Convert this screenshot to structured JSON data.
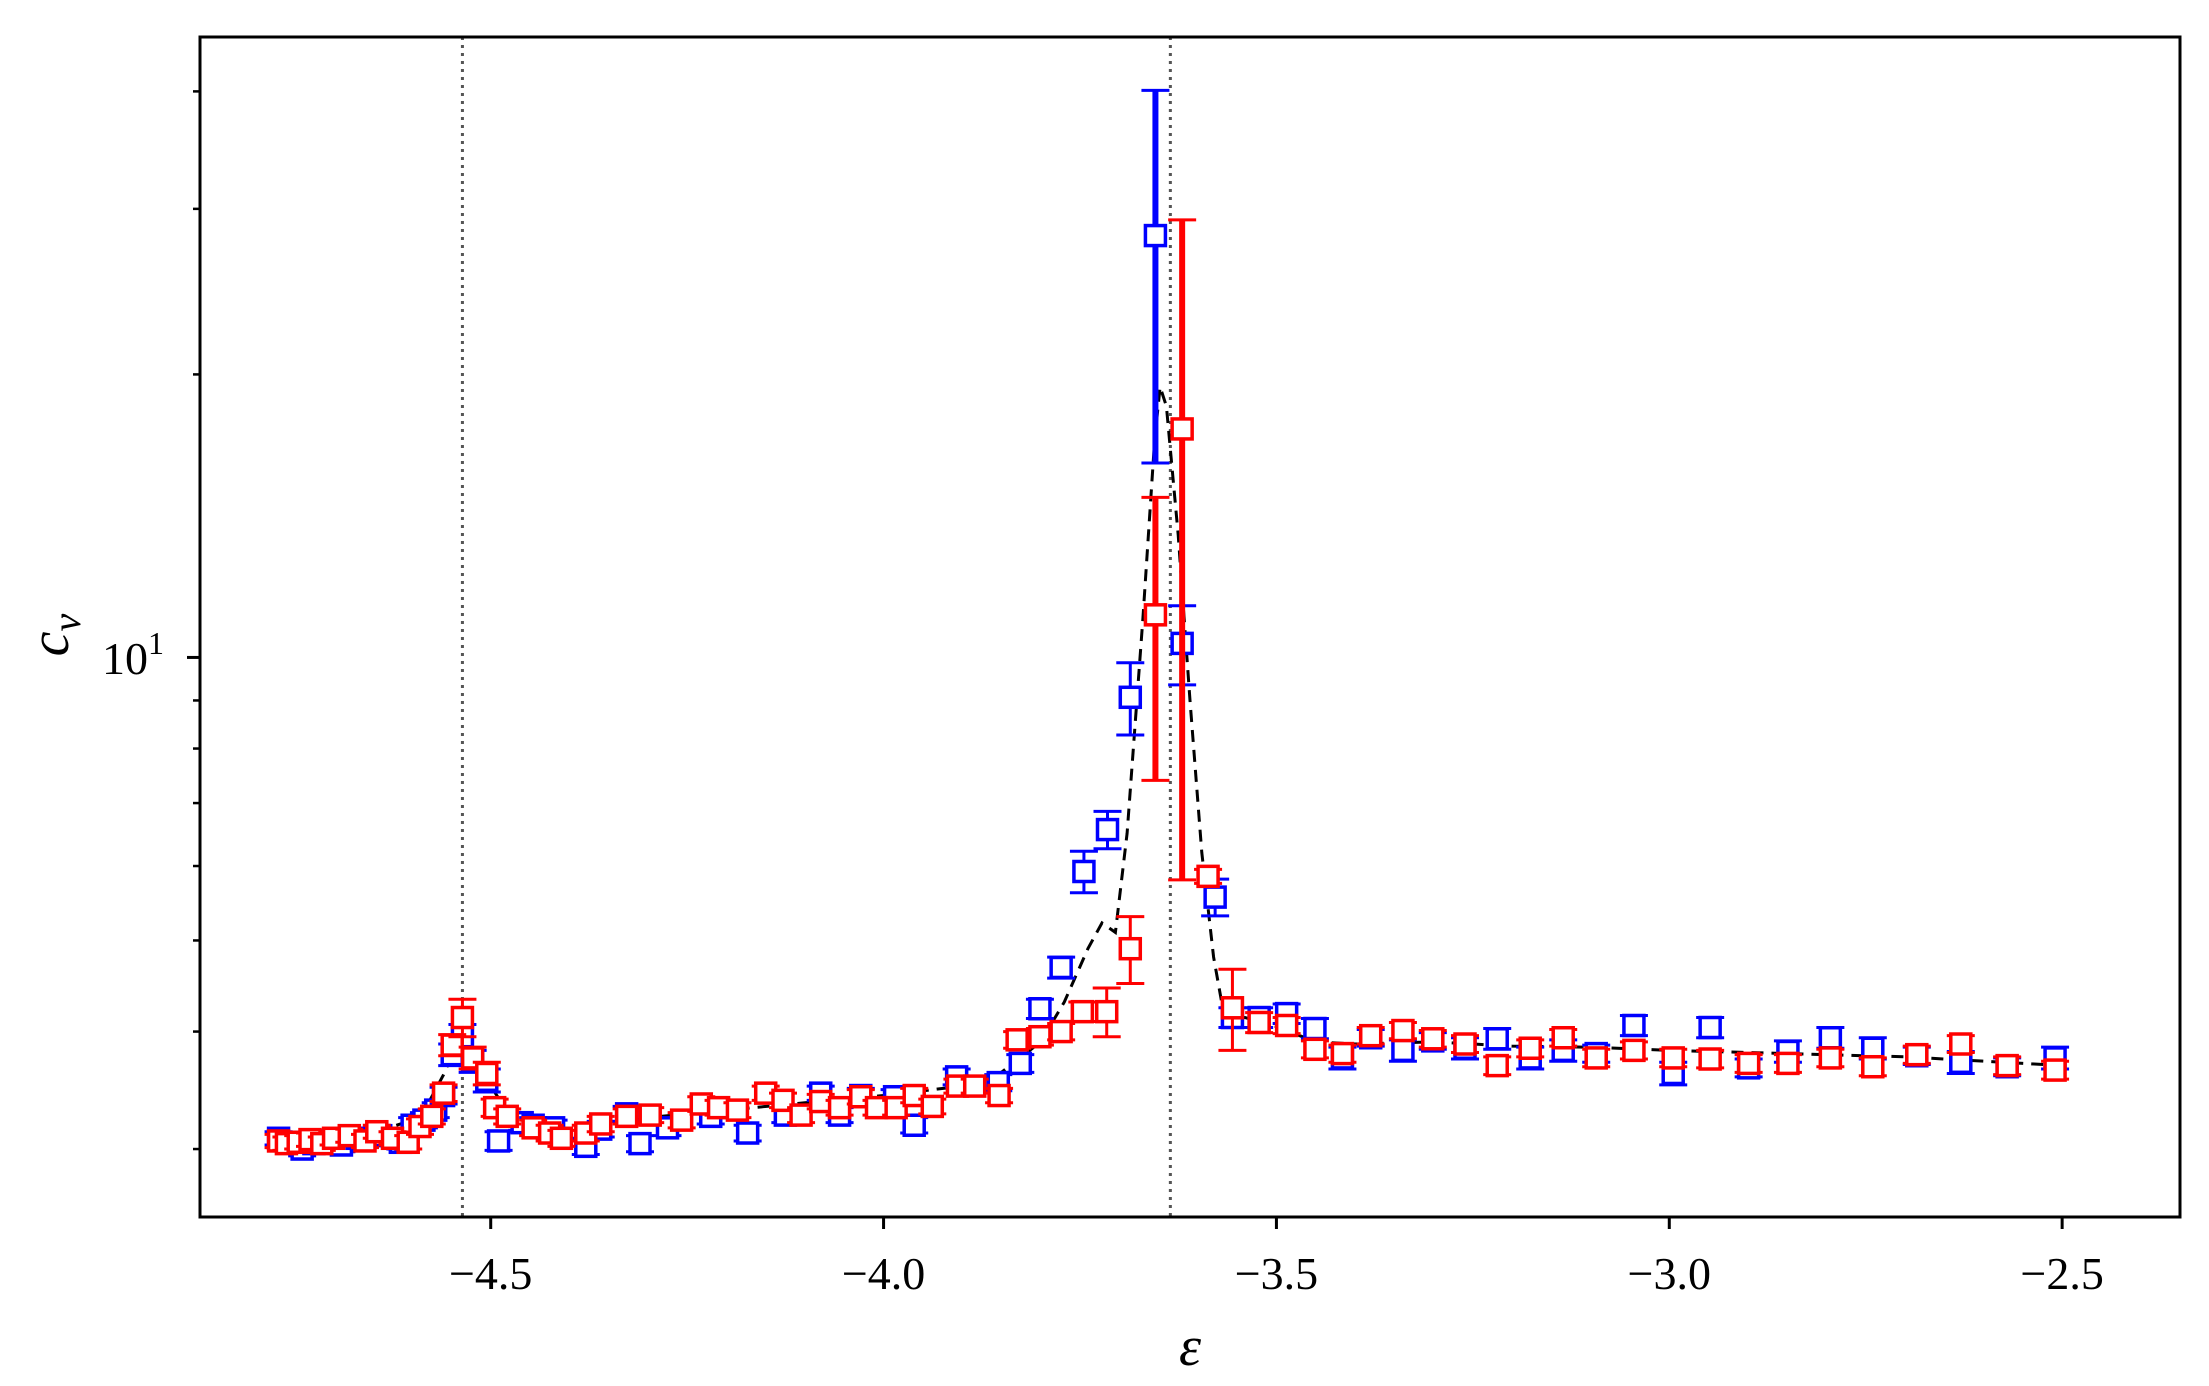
{
  "chart_data": {
    "type": "scatter",
    "title": "",
    "xlabel": "ε",
    "ylabel": "c_v",
    "ylabel_display": {
      "base": "c",
      "subscript": "v"
    },
    "xscale": "linear",
    "yscale": "log",
    "xlim": [
      -4.87,
      -2.35
    ],
    "ylim": [
      2.54,
      45.7
    ],
    "grid": false,
    "legend": null,
    "x_ticks": [
      -4.5,
      -4.0,
      -3.5,
      -3.0,
      -2.5
    ],
    "x_tick_labels": [
      "−4.5",
      "−4.0",
      "−3.5",
      "−3.0",
      "−2.5"
    ],
    "y_major_ticks": [
      10
    ],
    "y_major_tick_labels": [
      {
        "base": "10",
        "exp": "1"
      }
    ],
    "y_minor_ticks": [
      3,
      4,
      5,
      6,
      7,
      8,
      9,
      20,
      30,
      40
    ],
    "vlines": [
      {
        "x": -4.536,
        "style": "dotted",
        "color": "#555555"
      },
      {
        "x": -3.635,
        "style": "dotted",
        "color": "#555555"
      }
    ],
    "series": [
      {
        "name": "blue",
        "color": "#0000ff",
        "marker": "open-square",
        "points": [
          {
            "x": -4.77,
            "y": 3.08,
            "err": 0.05
          },
          {
            "x": -4.755,
            "y": 3.05,
            "err": 0.05
          },
          {
            "x": -4.74,
            "y": 3.0,
            "err": 0.05
          },
          {
            "x": -4.725,
            "y": 3.04,
            "err": 0.05
          },
          {
            "x": -4.71,
            "y": 3.06,
            "err": 0.05
          },
          {
            "x": -4.69,
            "y": 3.03,
            "err": 0.05
          },
          {
            "x": -4.67,
            "y": 3.08,
            "err": 0.05
          },
          {
            "x": -4.64,
            "y": 3.1,
            "err": 0.05
          },
          {
            "x": -4.615,
            "y": 3.05,
            "err": 0.05
          },
          {
            "x": -4.6,
            "y": 3.18,
            "err": 0.06
          },
          {
            "x": -4.585,
            "y": 3.22,
            "err": 0.06
          },
          {
            "x": -4.57,
            "y": 3.3,
            "err": 0.06
          },
          {
            "x": -4.56,
            "y": 3.42,
            "err": 0.07
          },
          {
            "x": -4.549,
            "y": 3.78,
            "err": 0.1
          },
          {
            "x": -4.536,
            "y": 3.95,
            "err": 0.12
          },
          {
            "x": -4.523,
            "y": 3.72,
            "err": 0.1
          },
          {
            "x": -4.505,
            "y": 3.55,
            "err": 0.1
          },
          {
            "x": -4.49,
            "y": 3.06,
            "err": 0.07
          },
          {
            "x": -4.46,
            "y": 3.2,
            "err": 0.06
          },
          {
            "x": -4.446,
            "y": 3.18,
            "err": 0.06
          },
          {
            "x": -4.42,
            "y": 3.16,
            "err": 0.06
          },
          {
            "x": -4.379,
            "y": 3.02,
            "err": 0.06
          },
          {
            "x": -4.36,
            "y": 3.15,
            "err": 0.06
          },
          {
            "x": -4.327,
            "y": 3.27,
            "err": 0.06
          },
          {
            "x": -4.31,
            "y": 3.04,
            "err": 0.06
          },
          {
            "x": -4.275,
            "y": 3.16,
            "err": 0.06
          },
          {
            "x": -4.22,
            "y": 3.25,
            "err": 0.06
          },
          {
            "x": -4.173,
            "y": 3.12,
            "err": 0.06
          },
          {
            "x": -4.125,
            "y": 3.26,
            "err": 0.06
          },
          {
            "x": -4.08,
            "y": 3.44,
            "err": 0.06
          },
          {
            "x": -4.056,
            "y": 3.26,
            "err": 0.06
          },
          {
            "x": -4.029,
            "y": 3.42,
            "err": 0.06
          },
          {
            "x": -3.986,
            "y": 3.41,
            "err": 0.06
          },
          {
            "x": -3.961,
            "y": 3.18,
            "err": 0.06
          },
          {
            "x": -3.907,
            "y": 3.58,
            "err": 0.07
          },
          {
            "x": -3.854,
            "y": 3.53,
            "err": 0.07
          },
          {
            "x": -3.826,
            "y": 3.7,
            "err": 0.08
          },
          {
            "x": -3.801,
            "y": 4.23,
            "err": 0.1
          },
          {
            "x": -3.774,
            "y": 4.68,
            "err": 0.12
          },
          {
            "x": -3.745,
            "y": 5.92,
            "err": 0.3
          },
          {
            "x": -3.715,
            "y": 6.56,
            "err": 0.3
          },
          {
            "x": -3.686,
            "y": 9.07,
            "err": 0.8
          },
          {
            "x": -3.654,
            "y": 28.1,
            "err": 12.0
          },
          {
            "x": -3.62,
            "y": 10.35,
            "err": 1.0
          },
          {
            "x": -3.578,
            "y": 5.56,
            "err": 0.25
          },
          {
            "x": -3.556,
            "y": 4.14,
            "err": 0.1
          },
          {
            "x": -3.522,
            "y": 4.14,
            "err": 0.1
          },
          {
            "x": -3.487,
            "y": 4.18,
            "err": 0.1
          },
          {
            "x": -3.451,
            "y": 4.03,
            "err": 0.1
          },
          {
            "x": -3.416,
            "y": 3.75,
            "err": 0.1
          },
          {
            "x": -3.38,
            "y": 3.94,
            "err": 0.08
          },
          {
            "x": -3.339,
            "y": 3.82,
            "err": 0.1
          },
          {
            "x": -3.301,
            "y": 3.91,
            "err": 0.08
          },
          {
            "x": -3.26,
            "y": 3.84,
            "err": 0.1
          },
          {
            "x": -3.219,
            "y": 3.93,
            "err": 0.1
          },
          {
            "x": -3.177,
            "y": 3.75,
            "err": 0.1
          },
          {
            "x": -3.135,
            "y": 3.82,
            "err": 0.1
          },
          {
            "x": -3.093,
            "y": 3.79,
            "err": 0.08
          },
          {
            "x": -3.045,
            "y": 4.06,
            "err": 0.1
          },
          {
            "x": -2.995,
            "y": 3.61,
            "err": 0.1
          },
          {
            "x": -2.948,
            "y": 4.04,
            "err": 0.1
          },
          {
            "x": -2.899,
            "y": 3.66,
            "err": 0.08
          },
          {
            "x": -2.849,
            "y": 3.81,
            "err": 0.1
          },
          {
            "x": -2.795,
            "y": 3.94,
            "err": 0.1
          },
          {
            "x": -2.741,
            "y": 3.84,
            "err": 0.1
          },
          {
            "x": -2.685,
            "y": 3.77,
            "err": 0.08
          },
          {
            "x": -2.629,
            "y": 3.71,
            "err": 0.1
          },
          {
            "x": -2.57,
            "y": 3.67,
            "err": 0.08
          },
          {
            "x": -2.509,
            "y": 3.75,
            "err": 0.1
          }
        ]
      },
      {
        "name": "red",
        "color": "#ff0000",
        "marker": "open-square",
        "points": [
          {
            "x": -4.77,
            "y": 3.06,
            "err": 0.05
          },
          {
            "x": -4.76,
            "y": 3.04,
            "err": 0.05
          },
          {
            "x": -4.745,
            "y": 3.05,
            "err": 0.05
          },
          {
            "x": -4.73,
            "y": 3.07,
            "err": 0.05
          },
          {
            "x": -4.715,
            "y": 3.04,
            "err": 0.05
          },
          {
            "x": -4.7,
            "y": 3.08,
            "err": 0.05
          },
          {
            "x": -4.68,
            "y": 3.1,
            "err": 0.05
          },
          {
            "x": -4.66,
            "y": 3.06,
            "err": 0.05
          },
          {
            "x": -4.645,
            "y": 3.13,
            "err": 0.05
          },
          {
            "x": -4.625,
            "y": 3.08,
            "err": 0.05
          },
          {
            "x": -4.605,
            "y": 3.05,
            "err": 0.05
          },
          {
            "x": -4.59,
            "y": 3.17,
            "err": 0.06
          },
          {
            "x": -4.575,
            "y": 3.25,
            "err": 0.06
          },
          {
            "x": -4.56,
            "y": 3.44,
            "err": 0.07
          },
          {
            "x": -4.549,
            "y": 3.87,
            "err": 0.1
          },
          {
            "x": -4.536,
            "y": 4.14,
            "err": 0.19
          },
          {
            "x": -4.523,
            "y": 3.75,
            "err": 0.1
          },
          {
            "x": -4.505,
            "y": 3.61,
            "err": 0.1
          },
          {
            "x": -4.495,
            "y": 3.32,
            "err": 0.07
          },
          {
            "x": -4.479,
            "y": 3.25,
            "err": 0.06
          },
          {
            "x": -4.446,
            "y": 3.16,
            "err": 0.06
          },
          {
            "x": -4.425,
            "y": 3.12,
            "err": 0.06
          },
          {
            "x": -4.41,
            "y": 3.08,
            "err": 0.06
          },
          {
            "x": -4.379,
            "y": 3.12,
            "err": 0.06
          },
          {
            "x": -4.36,
            "y": 3.19,
            "err": 0.06
          },
          {
            "x": -4.327,
            "y": 3.25,
            "err": 0.06
          },
          {
            "x": -4.297,
            "y": 3.26,
            "err": 0.06
          },
          {
            "x": -4.257,
            "y": 3.22,
            "err": 0.06
          },
          {
            "x": -4.232,
            "y": 3.35,
            "err": 0.06
          },
          {
            "x": -4.21,
            "y": 3.32,
            "err": 0.06
          },
          {
            "x": -4.186,
            "y": 3.3,
            "err": 0.06
          },
          {
            "x": -4.15,
            "y": 3.44,
            "err": 0.06
          },
          {
            "x": -4.128,
            "y": 3.38,
            "err": 0.06
          },
          {
            "x": -4.105,
            "y": 3.26,
            "err": 0.06
          },
          {
            "x": -4.08,
            "y": 3.37,
            "err": 0.06
          },
          {
            "x": -4.056,
            "y": 3.32,
            "err": 0.06
          },
          {
            "x": -4.029,
            "y": 3.41,
            "err": 0.06
          },
          {
            "x": -4.009,
            "y": 3.32,
            "err": 0.06
          },
          {
            "x": -3.984,
            "y": 3.32,
            "err": 0.06
          },
          {
            "x": -3.961,
            "y": 3.42,
            "err": 0.06
          },
          {
            "x": -3.938,
            "y": 3.33,
            "err": 0.06
          },
          {
            "x": -3.906,
            "y": 3.5,
            "err": 0.06
          },
          {
            "x": -3.884,
            "y": 3.5,
            "err": 0.06
          },
          {
            "x": -3.853,
            "y": 3.42,
            "err": 0.06
          },
          {
            "x": -3.83,
            "y": 3.92,
            "err": 0.08
          },
          {
            "x": -3.801,
            "y": 3.95,
            "err": 0.08
          },
          {
            "x": -3.774,
            "y": 4.0,
            "err": 0.08
          },
          {
            "x": -3.747,
            "y": 4.2,
            "err": 0.1
          },
          {
            "x": -3.716,
            "y": 4.2,
            "err": 0.25
          },
          {
            "x": -3.686,
            "y": 4.9,
            "err": 0.4
          },
          {
            "x": -3.654,
            "y": 11.1,
            "err": 3.7
          },
          {
            "x": -3.62,
            "y": 17.5,
            "err": 11.7
          },
          {
            "x": -3.587,
            "y": 5.85,
            "err": 0.1
          },
          {
            "x": -3.556,
            "y": 4.24,
            "err": 0.42
          },
          {
            "x": -3.522,
            "y": 4.09,
            "err": 0.1
          },
          {
            "x": -3.487,
            "y": 4.06,
            "err": 0.08
          },
          {
            "x": -3.451,
            "y": 3.83,
            "err": 0.08
          },
          {
            "x": -3.416,
            "y": 3.79,
            "err": 0.08
          },
          {
            "x": -3.38,
            "y": 3.96,
            "err": 0.08
          },
          {
            "x": -3.339,
            "y": 4.01,
            "err": 0.08
          },
          {
            "x": -3.301,
            "y": 3.93,
            "err": 0.08
          },
          {
            "x": -3.26,
            "y": 3.88,
            "err": 0.08
          },
          {
            "x": -3.219,
            "y": 3.68,
            "err": 0.08
          },
          {
            "x": -3.177,
            "y": 3.84,
            "err": 0.08
          },
          {
            "x": -3.135,
            "y": 3.94,
            "err": 0.08
          },
          {
            "x": -3.093,
            "y": 3.75,
            "err": 0.08
          },
          {
            "x": -3.045,
            "y": 3.82,
            "err": 0.08
          },
          {
            "x": -2.995,
            "y": 3.75,
            "err": 0.08
          },
          {
            "x": -2.948,
            "y": 3.74,
            "err": 0.08
          },
          {
            "x": -2.899,
            "y": 3.7,
            "err": 0.08
          },
          {
            "x": -2.849,
            "y": 3.7,
            "err": 0.08
          },
          {
            "x": -2.795,
            "y": 3.75,
            "err": 0.08
          },
          {
            "x": -2.741,
            "y": 3.67,
            "err": 0.08
          },
          {
            "x": -2.685,
            "y": 3.78,
            "err": 0.08
          },
          {
            "x": -2.629,
            "y": 3.88,
            "err": 0.08
          },
          {
            "x": -2.57,
            "y": 3.68,
            "err": 0.08
          },
          {
            "x": -2.509,
            "y": 3.64,
            "err": 0.08
          }
        ]
      },
      {
        "name": "fit",
        "color": "#000000",
        "style": "dashed",
        "x": [
          -4.77,
          -4.72,
          -4.66,
          -4.61,
          -4.58,
          -4.56,
          -4.545,
          -4.535,
          -4.52,
          -4.5,
          -4.48,
          -4.45,
          -4.4,
          -4.35,
          -4.3,
          -4.2,
          -4.1,
          -4.0,
          -3.9,
          -3.85,
          -3.8,
          -3.77,
          -3.74,
          -3.722,
          -3.705,
          -3.69,
          -3.67,
          -3.655,
          -3.648,
          -3.64,
          -3.625,
          -3.61,
          -3.595,
          -3.58,
          -3.568,
          -3.56,
          -3.54,
          -3.5,
          -3.45,
          -3.4,
          -3.3,
          -3.2,
          -3.1,
          -3.0,
          -2.9,
          -2.8,
          -2.7,
          -2.6,
          -2.5
        ],
        "y": [
          3.02,
          3.05,
          3.1,
          3.2,
          3.35,
          3.6,
          3.85,
          3.97,
          3.8,
          3.5,
          3.3,
          3.2,
          3.15,
          3.18,
          3.24,
          3.3,
          3.36,
          3.42,
          3.5,
          3.62,
          3.9,
          4.3,
          4.9,
          5.22,
          5.1,
          6.5,
          11.0,
          17.0,
          19.4,
          18.5,
          13.5,
          9.0,
          6.2,
          4.8,
          4.22,
          4.12,
          4.14,
          4.05,
          3.9,
          3.88,
          3.9,
          3.86,
          3.85,
          3.82,
          3.8,
          3.78,
          3.76,
          3.72,
          3.68
        ]
      }
    ]
  },
  "axes": {
    "x_tick_labels": [
      "−4.5",
      "−4.0",
      "−3.5",
      "−3.0",
      "−2.5"
    ],
    "y_tick_label_base": "10",
    "y_tick_label_exp": "1",
    "xlabel": "ε",
    "ylabel_base": "c",
    "ylabel_sub": "v"
  }
}
